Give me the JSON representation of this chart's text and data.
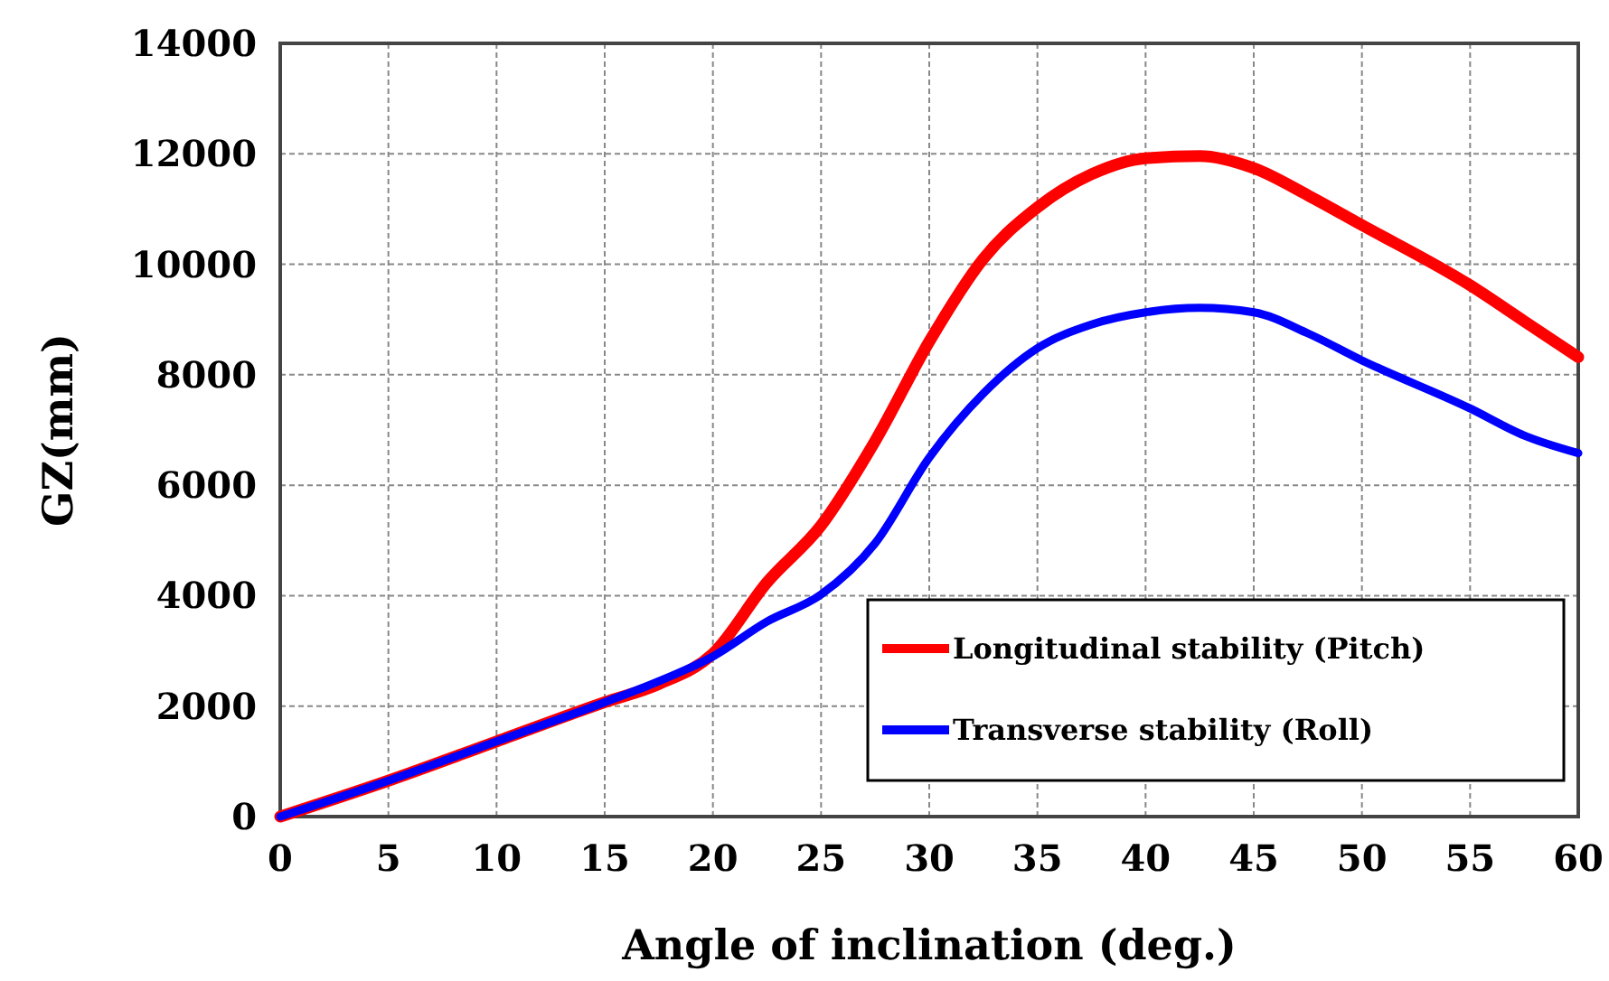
{
  "chart_data": {
    "type": "line",
    "xlabel": "Angle of inclination (deg.)",
    "ylabel": "GZ(mm)",
    "x": [
      0,
      5,
      10,
      15,
      17.5,
      20,
      22.5,
      25,
      27.5,
      30,
      32.5,
      35,
      37.5,
      40,
      42.5,
      45,
      47.5,
      50,
      55,
      57.5,
      60
    ],
    "series": [
      {
        "name": "Longitudinal stability (Pitch)",
        "color": "#ff0000",
        "values": [
          0,
          650,
          1360,
          2070,
          2400,
          2950,
          4240,
          5270,
          6800,
          8600,
          10100,
          11030,
          11630,
          11920,
          11960,
          11740,
          11250,
          10710,
          9620,
          8970,
          8320
        ]
      },
      {
        "name": "Transverse stability (Roll)",
        "color": "#0000ff",
        "values": [
          0,
          650,
          1360,
          2070,
          2450,
          2900,
          3530,
          4020,
          4950,
          6500,
          7660,
          8480,
          8910,
          9130,
          9210,
          9130,
          8750,
          8260,
          7390,
          6900,
          6580
        ]
      }
    ],
    "xlim": [
      0,
      60
    ],
    "ylim": [
      0,
      14000
    ],
    "xticks": [
      0,
      5,
      10,
      15,
      20,
      25,
      30,
      35,
      40,
      45,
      50,
      55,
      60
    ],
    "yticks": [
      0,
      2000,
      4000,
      6000,
      8000,
      10000,
      12000,
      14000
    ],
    "grid": true,
    "legend": "bottom right",
    "marker": "none",
    "line_style": "solid"
  }
}
